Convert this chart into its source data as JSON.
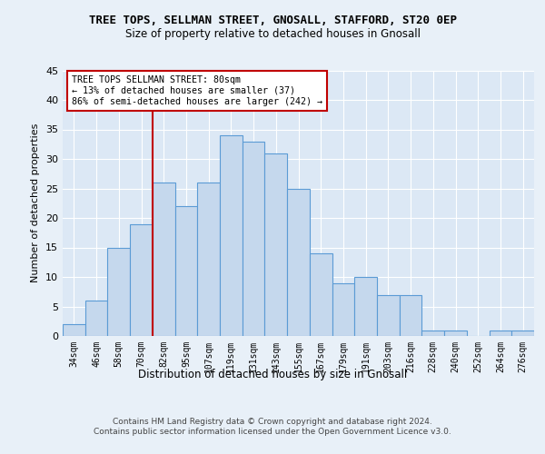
{
  "title": "TREE TOPS, SELLMAN STREET, GNOSALL, STAFFORD, ST20 0EP",
  "subtitle": "Size of property relative to detached houses in Gnosall",
  "xlabel": "Distribution of detached houses by size in Gnosall",
  "ylabel": "Number of detached properties",
  "bar_labels": [
    "34sqm",
    "46sqm",
    "58sqm",
    "70sqm",
    "82sqm",
    "95sqm",
    "107sqm",
    "119sqm",
    "131sqm",
    "143sqm",
    "155sqm",
    "167sqm",
    "179sqm",
    "191sqm",
    "203sqm",
    "216sqm",
    "228sqm",
    "240sqm",
    "252sqm",
    "264sqm",
    "276sqm"
  ],
  "bar_values": [
    2,
    6,
    15,
    19,
    26,
    22,
    26,
    34,
    33,
    31,
    25,
    14,
    9,
    10,
    7,
    7,
    1,
    1,
    0,
    1,
    1
  ],
  "bar_color": "#c5d8ed",
  "bar_edge_color": "#5b9bd5",
  "vline_x_idx": 4,
  "vline_color": "#c00000",
  "annotation_text": "TREE TOPS SELLMAN STREET: 80sqm\n← 13% of detached houses are smaller (37)\n86% of semi-detached houses are larger (242) →",
  "annotation_box_color": "#ffffff",
  "annotation_box_edge_color": "#c00000",
  "ylim": [
    0,
    45
  ],
  "yticks": [
    0,
    5,
    10,
    15,
    20,
    25,
    30,
    35,
    40,
    45
  ],
  "footer": "Contains HM Land Registry data © Crown copyright and database right 2024.\nContains public sector information licensed under the Open Government Licence v3.0.",
  "bg_color": "#e8f0f8",
  "plot_bg_color": "#dce8f5"
}
